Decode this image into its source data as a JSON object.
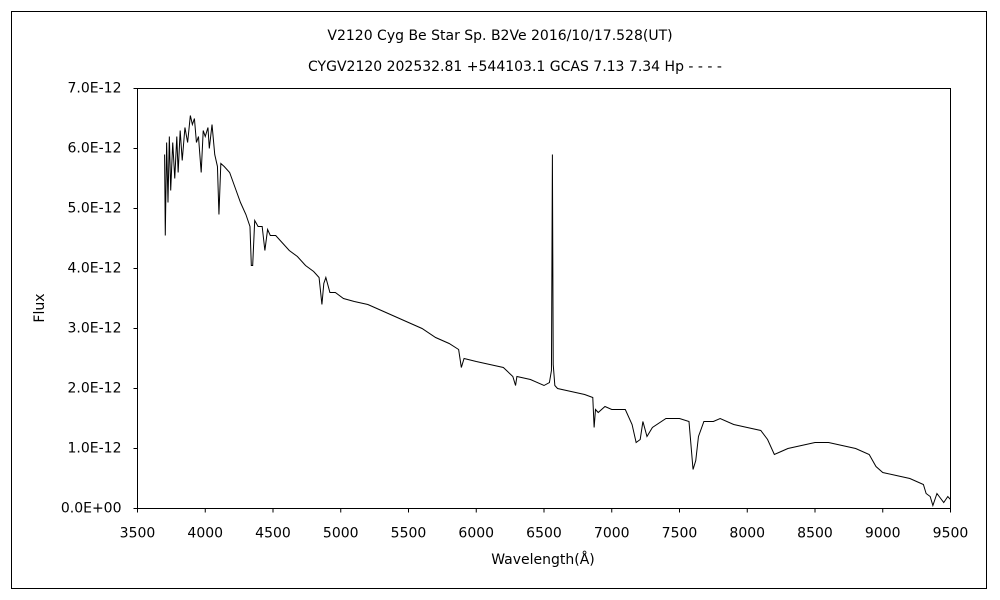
{
  "chart_data": {
    "type": "line",
    "title": "V2120 Cyg    Be Star    Sp. B2Ve    2016/10/17.528(UT)",
    "subtitle": "CYGV2120 202532.81 +544103.1 GCAS 7.13 7.34 Hp - - - -",
    "x_label": "Wavelength(Å)",
    "y_label": "Flux",
    "color": "#000000",
    "xlim": [
      3500,
      9500
    ],
    "xticks": [
      3500,
      4000,
      4500,
      5000,
      5500,
      6000,
      6500,
      7000,
      7500,
      8000,
      8500,
      9000,
      9500
    ],
    "ylim": [
      0,
      7e-12
    ],
    "yticks": [
      {
        "value": 0,
        "label": "0.0E+00"
      },
      {
        "value": 1e-12,
        "label": "1.0E-12"
      },
      {
        "value": 2e-12,
        "label": "2.0E-12"
      },
      {
        "value": 3e-12,
        "label": "3.0E-12"
      },
      {
        "value": 4e-12,
        "label": "4.0E-12"
      },
      {
        "value": 5e-12,
        "label": "5.0E-12"
      },
      {
        "value": 6e-12,
        "label": "6.0E-12"
      },
      {
        "value": 7e-12,
        "label": "7.0E-12"
      }
    ],
    "x": [
      3700,
      3705,
      3715,
      3725,
      3735,
      3745,
      3760,
      3775,
      3790,
      3800,
      3815,
      3830,
      3850,
      3870,
      3890,
      3905,
      3920,
      3935,
      3950,
      3970,
      3985,
      4000,
      4020,
      4030,
      4050,
      4070,
      4090,
      4101,
      4115,
      4140,
      4180,
      4220,
      4260,
      4300,
      4330,
      4340,
      4350,
      4365,
      4390,
      4420,
      4440,
      4460,
      4480,
      4520,
      4560,
      4620,
      4680,
      4740,
      4800,
      4840,
      4861,
      4875,
      4890,
      4920,
      4960,
      5020,
      5100,
      5200,
      5300,
      5400,
      5500,
      5600,
      5700,
      5800,
      5870,
      5890,
      5910,
      6000,
      6100,
      6200,
      6270,
      6290,
      6300,
      6400,
      6500,
      6540,
      6555,
      6562,
      6568,
      6580,
      6600,
      6700,
      6800,
      6860,
      6870,
      6880,
      6900,
      6950,
      7000,
      7100,
      7150,
      7180,
      7210,
      7230,
      7260,
      7300,
      7400,
      7500,
      7570,
      7600,
      7620,
      7640,
      7680,
      7750,
      7800,
      7900,
      8000,
      8100,
      8150,
      8200,
      8250,
      8300,
      8400,
      8500,
      8600,
      8700,
      8800,
      8900,
      8950,
      9000,
      9100,
      9200,
      9300,
      9320,
      9350,
      9370,
      9400,
      9450,
      9480,
      9500
    ],
    "values": [
      5.9e-12,
      4.55e-12,
      6.1e-12,
      5.1e-12,
      6.2e-12,
      5.3e-12,
      6.1e-12,
      5.5e-12,
      6.2e-12,
      5.6e-12,
      6.3e-12,
      5.8e-12,
      6.35e-12,
      6.1e-12,
      6.55e-12,
      6.4e-12,
      6.5e-12,
      6.1e-12,
      6.2e-12,
      5.6e-12,
      6.3e-12,
      6.2e-12,
      6.35e-12,
      6e-12,
      6.4e-12,
      5.9e-12,
      5.7e-12,
      4.9e-12,
      5.75e-12,
      5.7e-12,
      5.6e-12,
      5.35e-12,
      5.1e-12,
      4.9e-12,
      4.7e-12,
      4.05e-12,
      4.05e-12,
      4.8e-12,
      4.7e-12,
      4.7e-12,
      4.3e-12,
      4.65e-12,
      4.55e-12,
      4.55e-12,
      4.45e-12,
      4.3e-12,
      4.2e-12,
      4.05e-12,
      3.95e-12,
      3.85e-12,
      3.4e-12,
      3.75e-12,
      3.85e-12,
      3.6e-12,
      3.6e-12,
      3.5e-12,
      3.45e-12,
      3.4e-12,
      3.3e-12,
      3.2e-12,
      3.1e-12,
      3e-12,
      2.85e-12,
      2.75e-12,
      2.65e-12,
      2.35e-12,
      2.5e-12,
      2.45e-12,
      2.4e-12,
      2.35e-12,
      2.2e-12,
      2.05e-12,
      2.2e-12,
      2.15e-12,
      2.05e-12,
      2.1e-12,
      2.3e-12,
      5.9e-12,
      2.4e-12,
      2.05e-12,
      2e-12,
      1.95e-12,
      1.9e-12,
      1.85e-12,
      1.35e-12,
      1.65e-12,
      1.6e-12,
      1.7e-12,
      1.65e-12,
      1.65e-12,
      1.4e-12,
      1.1e-12,
      1.15e-12,
      1.45e-12,
      1.2e-12,
      1.35e-12,
      1.5e-12,
      1.5e-12,
      1.45e-12,
      6.5e-13,
      8e-13,
      1.2e-12,
      1.45e-12,
      1.45e-12,
      1.5e-12,
      1.4e-12,
      1.35e-12,
      1.3e-12,
      1.15e-12,
      9e-13,
      9.5e-13,
      1e-12,
      1.05e-12,
      1.1e-12,
      1.1e-12,
      1.05e-12,
      1e-12,
      9e-13,
      7e-13,
      6e-13,
      5.5e-13,
      5e-13,
      4e-13,
      2.5e-13,
      2e-13,
      5e-14,
      2.5e-13,
      1e-13,
      2e-13,
      1.5e-13
    ]
  }
}
